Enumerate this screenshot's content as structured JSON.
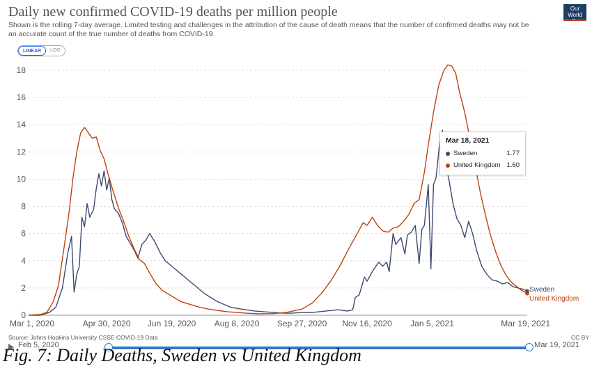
{
  "header": {
    "title": "Daily new confirmed COVID-19 deaths per million people",
    "subtitle": "Shown is the rolling 7-day average. Limited testing and challenges in the attribution of the cause of death means that the number of confirmed deaths may not be an accurate count of the true number of deaths from COVID-19.",
    "logo_line1": "Our World",
    "logo_line2": "in Data"
  },
  "scale_toggle": {
    "linear": "LINEAR",
    "log": "LOG",
    "selected": "LINEAR"
  },
  "tooltip": {
    "date": "Mar 18, 2021",
    "rows": [
      {
        "name": "Sweden",
        "value": "1.77"
      },
      {
        "name": "United Kingdom",
        "value": "1.60"
      }
    ]
  },
  "footer": {
    "source": "Source: Johns Hopkins University CSSE COVID-19 Data",
    "license": "CC BY"
  },
  "timeline": {
    "start": "Feb 5, 2020",
    "end": "Mar 19, 2021"
  },
  "caption": "Fig. 7: Daily Deaths, Sweden vs United Kingdom",
  "colors": {
    "sweden": "#3c4a6e",
    "uk": "#c0420b",
    "grid": "#dddddd",
    "accent": "#3178c6"
  },
  "chart_data": {
    "type": "line",
    "title": "Daily new confirmed COVID-19 deaths per million people",
    "ylim": [
      0,
      18
    ],
    "yticks": [
      "0",
      "2",
      "4",
      "6",
      "8",
      "10",
      "12",
      "14",
      "16",
      "18"
    ],
    "xlim": [
      "2020-03-01",
      "2021-03-19"
    ],
    "xticks": [
      {
        "date": "2020-03-01",
        "label": "Mar 1, 2020"
      },
      {
        "date": "2020-04-30",
        "label": "Apr 30, 2020"
      },
      {
        "date": "2020-06-19",
        "label": "Jun 19, 2020"
      },
      {
        "date": "2020-08-08",
        "label": "Aug 8, 2020"
      },
      {
        "date": "2020-09-27",
        "label": "Sep 27, 2020"
      },
      {
        "date": "2020-11-16",
        "label": "Nov 16, 2020"
      },
      {
        "date": "2021-01-05",
        "label": "Jan 5, 2021"
      },
      {
        "date": "2021-03-19",
        "label": "Mar 19, 2021"
      }
    ],
    "grid": "horizontal dashed",
    "series": [
      {
        "name": "Sweden",
        "color": "#3c4a6e",
        "points": [
          [
            "2020-03-01",
            0
          ],
          [
            "2020-03-10",
            0
          ],
          [
            "2020-03-17",
            0.2
          ],
          [
            "2020-03-22",
            0.6
          ],
          [
            "2020-03-27",
            2
          ],
          [
            "2020-03-31",
            4.5
          ],
          [
            "2020-04-03",
            5.8
          ],
          [
            "2020-04-05",
            1.7
          ],
          [
            "2020-04-07",
            3
          ],
          [
            "2020-04-09",
            3.6
          ],
          [
            "2020-04-11",
            7.2
          ],
          [
            "2020-04-13",
            6.5
          ],
          [
            "2020-04-15",
            8.2
          ],
          [
            "2020-04-17",
            7.2
          ],
          [
            "2020-04-20",
            7.8
          ],
          [
            "2020-04-22",
            9.3
          ],
          [
            "2020-04-24",
            10.4
          ],
          [
            "2020-04-26",
            9.5
          ],
          [
            "2020-04-28",
            10.6
          ],
          [
            "2020-04-30",
            9.2
          ],
          [
            "2020-05-02",
            10.1
          ],
          [
            "2020-05-04",
            8.5
          ],
          [
            "2020-05-06",
            7.8
          ],
          [
            "2020-05-09",
            7.5
          ],
          [
            "2020-05-12",
            6.8
          ],
          [
            "2020-05-15",
            5.8
          ],
          [
            "2020-05-18",
            5.3
          ],
          [
            "2020-05-21",
            4.8
          ],
          [
            "2020-05-24",
            4.2
          ],
          [
            "2020-05-27",
            5.2
          ],
          [
            "2020-05-30",
            5.5
          ],
          [
            "2020-06-02",
            6
          ],
          [
            "2020-06-06",
            5.4
          ],
          [
            "2020-06-10",
            4.6
          ],
          [
            "2020-06-14",
            4
          ],
          [
            "2020-06-19",
            3.6
          ],
          [
            "2020-06-24",
            3.2
          ],
          [
            "2020-06-29",
            2.8
          ],
          [
            "2020-07-04",
            2.4
          ],
          [
            "2020-07-09",
            2
          ],
          [
            "2020-07-14",
            1.6
          ],
          [
            "2020-07-19",
            1.3
          ],
          [
            "2020-07-24",
            1
          ],
          [
            "2020-07-29",
            0.8
          ],
          [
            "2020-08-03",
            0.6
          ],
          [
            "2020-08-08",
            0.5
          ],
          [
            "2020-08-15",
            0.4
          ],
          [
            "2020-08-22",
            0.3
          ],
          [
            "2020-08-29",
            0.25
          ],
          [
            "2020-09-05",
            0.2
          ],
          [
            "2020-09-12",
            0.15
          ],
          [
            "2020-09-19",
            0.15
          ],
          [
            "2020-09-27",
            0.2
          ],
          [
            "2020-10-05",
            0.2
          ],
          [
            "2020-10-15",
            0.3
          ],
          [
            "2020-10-25",
            0.4
          ],
          [
            "2020-11-01",
            0.3
          ],
          [
            "2020-11-05",
            0.4
          ],
          [
            "2020-11-07",
            1.3
          ],
          [
            "2020-11-10",
            1.5
          ],
          [
            "2020-11-14",
            2.8
          ],
          [
            "2020-11-16",
            2.5
          ],
          [
            "2020-11-20",
            3.2
          ],
          [
            "2020-11-25",
            3.9
          ],
          [
            "2020-11-28",
            3.6
          ],
          [
            "2020-12-01",
            3.9
          ],
          [
            "2020-12-03",
            3.2
          ],
          [
            "2020-12-06",
            6
          ],
          [
            "2020-12-08",
            5.2
          ],
          [
            "2020-12-12",
            5.7
          ],
          [
            "2020-12-15",
            4.5
          ],
          [
            "2020-12-17",
            5.9
          ],
          [
            "2020-12-20",
            6.1
          ],
          [
            "2020-12-23",
            6.6
          ],
          [
            "2020-12-26",
            3.8
          ],
          [
            "2020-12-28",
            6.3
          ],
          [
            "2020-12-30",
            6.6
          ],
          [
            "2021-01-02",
            9.6
          ],
          [
            "2021-01-04",
            3.4
          ],
          [
            "2021-01-06",
            9.6
          ],
          [
            "2021-01-08",
            10.1
          ],
          [
            "2021-01-11",
            12.9
          ],
          [
            "2021-01-13",
            13.6
          ],
          [
            "2021-01-15",
            11.2
          ],
          [
            "2021-01-18",
            9.9
          ],
          [
            "2021-01-21",
            8.2
          ],
          [
            "2021-01-24",
            7.1
          ],
          [
            "2021-01-27",
            6.6
          ],
          [
            "2021-01-30",
            5.7
          ],
          [
            "2021-02-02",
            6.9
          ],
          [
            "2021-02-05",
            6
          ],
          [
            "2021-02-08",
            4.8
          ],
          [
            "2021-02-12",
            3.6
          ],
          [
            "2021-02-16",
            3
          ],
          [
            "2021-02-20",
            2.6
          ],
          [
            "2021-02-24",
            2.5
          ],
          [
            "2021-02-28",
            2.3
          ],
          [
            "2021-03-04",
            2.4
          ],
          [
            "2021-03-08",
            2.1
          ],
          [
            "2021-03-12",
            2
          ],
          [
            "2021-03-16",
            1.9
          ],
          [
            "2021-03-19",
            1.77
          ]
        ]
      },
      {
        "name": "United Kingdom",
        "color": "#c0420b",
        "points": [
          [
            "2020-03-01",
            0
          ],
          [
            "2020-03-10",
            0.05
          ],
          [
            "2020-03-15",
            0.2
          ],
          [
            "2020-03-20",
            1
          ],
          [
            "2020-03-24",
            2.2
          ],
          [
            "2020-03-28",
            4.8
          ],
          [
            "2020-04-01",
            7.5
          ],
          [
            "2020-04-04",
            10
          ],
          [
            "2020-04-07",
            12
          ],
          [
            "2020-04-10",
            13.4
          ],
          [
            "2020-04-13",
            13.8
          ],
          [
            "2020-04-16",
            13.4
          ],
          [
            "2020-04-19",
            13
          ],
          [
            "2020-04-22",
            13.1
          ],
          [
            "2020-04-25",
            12.1
          ],
          [
            "2020-04-28",
            11.5
          ],
          [
            "2020-05-01",
            10.4
          ],
          [
            "2020-05-05",
            9.1
          ],
          [
            "2020-05-09",
            7.9
          ],
          [
            "2020-05-13",
            6.9
          ],
          [
            "2020-05-17",
            5.8
          ],
          [
            "2020-05-21",
            4.9
          ],
          [
            "2020-05-25",
            4.1
          ],
          [
            "2020-05-29",
            3.8
          ],
          [
            "2020-06-02",
            3.1
          ],
          [
            "2020-06-07",
            2.3
          ],
          [
            "2020-06-12",
            1.8
          ],
          [
            "2020-06-19",
            1.4
          ],
          [
            "2020-06-26",
            1
          ],
          [
            "2020-07-03",
            0.8
          ],
          [
            "2020-07-10",
            0.6
          ],
          [
            "2020-07-17",
            0.45
          ],
          [
            "2020-07-24",
            0.35
          ],
          [
            "2020-08-01",
            0.25
          ],
          [
            "2020-08-08",
            0.2
          ],
          [
            "2020-08-15",
            0.15
          ],
          [
            "2020-08-25",
            0.1
          ],
          [
            "2020-09-05",
            0.12
          ],
          [
            "2020-09-15",
            0.2
          ],
          [
            "2020-09-27",
            0.45
          ],
          [
            "2020-10-05",
            0.9
          ],
          [
            "2020-10-12",
            1.6
          ],
          [
            "2020-10-19",
            2.5
          ],
          [
            "2020-10-26",
            3.6
          ],
          [
            "2020-11-02",
            4.9
          ],
          [
            "2020-11-09",
            6.1
          ],
          [
            "2020-11-13",
            6.8
          ],
          [
            "2020-11-16",
            6.6
          ],
          [
            "2020-11-20",
            7.2
          ],
          [
            "2020-11-24",
            6.6
          ],
          [
            "2020-11-28",
            6.2
          ],
          [
            "2020-12-02",
            6.1
          ],
          [
            "2020-12-06",
            6.4
          ],
          [
            "2020-12-10",
            6.5
          ],
          [
            "2020-12-14",
            6.9
          ],
          [
            "2020-12-18",
            7.4
          ],
          [
            "2020-12-22",
            8.2
          ],
          [
            "2020-12-26",
            8.5
          ],
          [
            "2020-12-30",
            10.5
          ],
          [
            "2021-01-02",
            12.5
          ],
          [
            "2021-01-06",
            14.9
          ],
          [
            "2021-01-10",
            16.9
          ],
          [
            "2021-01-14",
            18
          ],
          [
            "2021-01-17",
            18.4
          ],
          [
            "2021-01-20",
            18.3
          ],
          [
            "2021-01-23",
            17.8
          ],
          [
            "2021-01-26",
            16.4
          ],
          [
            "2021-01-30",
            14.9
          ],
          [
            "2021-02-03",
            13
          ],
          [
            "2021-02-07",
            11
          ],
          [
            "2021-02-11",
            9
          ],
          [
            "2021-02-15",
            7.3
          ],
          [
            "2021-02-19",
            5.8
          ],
          [
            "2021-02-23",
            4.6
          ],
          [
            "2021-02-27",
            3.6
          ],
          [
            "2021-03-03",
            2.9
          ],
          [
            "2021-03-07",
            2.4
          ],
          [
            "2021-03-11",
            2.1
          ],
          [
            "2021-03-15",
            1.8
          ],
          [
            "2021-03-19",
            1.6
          ]
        ]
      }
    ],
    "end_labels": [
      "Sweden",
      "United Kingdom"
    ]
  }
}
